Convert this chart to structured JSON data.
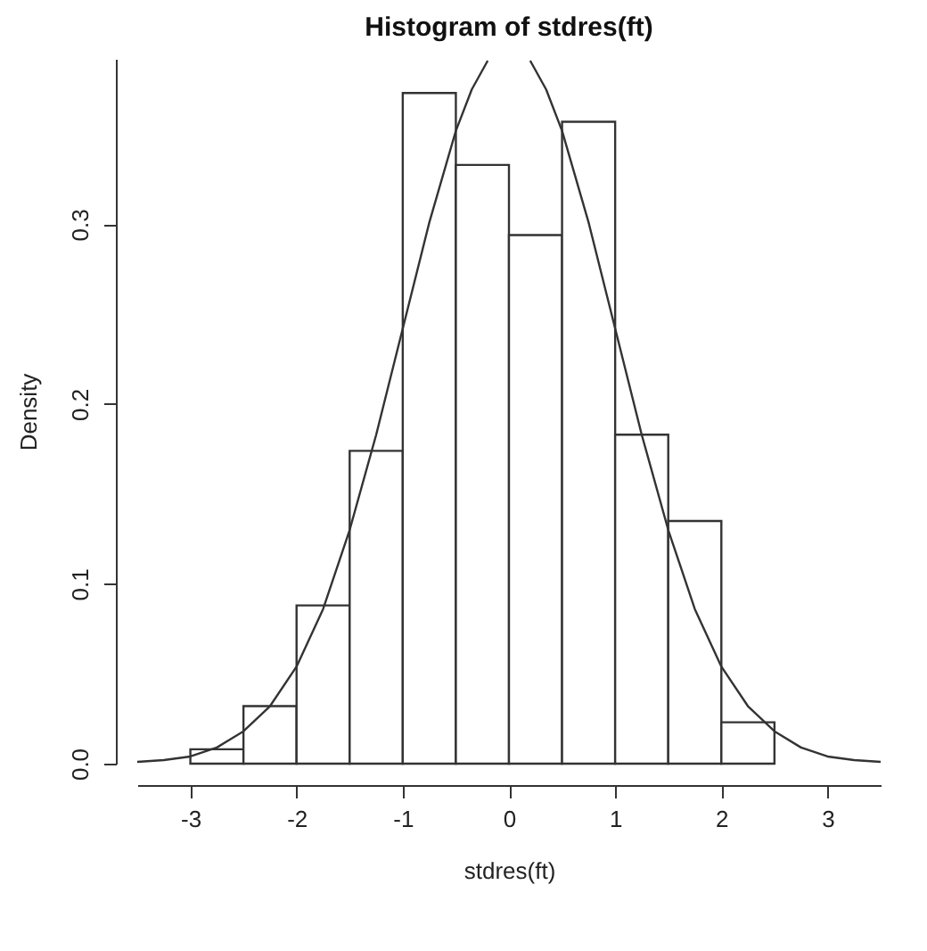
{
  "chart_data": {
    "type": "histogram",
    "title": "Histogram of stdres(ft)",
    "xlabel": "stdres(ft)",
    "ylabel": "Density",
    "bins": [
      -3,
      -2.5,
      -2,
      -1.5,
      -1,
      -0.5,
      0,
      0.5,
      1,
      1.5,
      2,
      2.5
    ],
    "values": [
      0.008,
      0.032,
      0.088,
      0.174,
      0.373,
      0.333,
      0.294,
      0.357,
      0.183,
      0.135,
      0.023
    ],
    "color": "#ffffff",
    "series": [
      {
        "type": "line",
        "color": "#333333",
        "x": [
          -3.5,
          -3.25,
          -3,
          -2.75,
          -2.5,
          -2.25,
          -2,
          -1.75,
          -1.5,
          -1.25,
          -1,
          -0.75,
          -0.5,
          -0.35,
          -0.2,
          0,
          0.2,
          0.35,
          0.5,
          0.75,
          1,
          1.25,
          1.5,
          1.75,
          2,
          2.25,
          2.5,
          2.75,
          3,
          3.25,
          3.5
        ],
        "values": [
          0.001,
          0.002,
          0.004,
          0.009,
          0.018,
          0.032,
          0.054,
          0.086,
          0.13,
          0.183,
          0.242,
          0.301,
          0.352,
          0.375,
          0.391,
          null,
          0.391,
          0.375,
          0.352,
          0.301,
          0.242,
          0.183,
          0.13,
          0.086,
          0.054,
          0.032,
          0.018,
          0.009,
          0.004,
          0.002,
          0.001
        ]
      }
    ],
    "xlim": [
      -3.5,
      3.5
    ],
    "ylim": [
      0,
      0.392
    ],
    "xticks": [
      -3,
      -2,
      -1,
      0,
      1,
      2,
      3
    ],
    "yticks": [
      {
        "value": 0,
        "label": "0.0"
      },
      0.1,
      0.2,
      0.3
    ],
    "grid": false
  }
}
